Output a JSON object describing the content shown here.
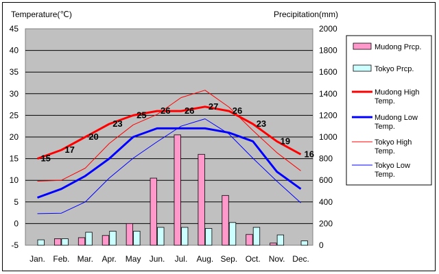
{
  "chart_data": {
    "type": "bar+line",
    "left_axis_label": "Temperature(℃)",
    "right_axis_label": "Precipitation(mm)",
    "left_ylim": [
      -5,
      45
    ],
    "left_ticks": [
      45,
      40,
      35,
      30,
      25,
      20,
      15,
      10,
      5,
      0,
      -5
    ],
    "right_ylim": [
      0,
      2000
    ],
    "right_ticks": [
      2000,
      1800,
      1600,
      1400,
      1200,
      1000,
      800,
      600,
      400,
      200,
      0
    ],
    "categories": [
      "Jan.",
      "Feb.",
      "Mar.",
      "Apr.",
      "May",
      "Jun.",
      "Jul.",
      "Aug.",
      "Sep.",
      "Oct.",
      "Nov.",
      "Dec."
    ],
    "bars": [
      {
        "name": "Mudong Prcp.",
        "color": "#ff99cc",
        "values": [
          0,
          60,
          70,
          90,
          200,
          620,
          1020,
          840,
          460,
          100,
          20,
          0
        ]
      },
      {
        "name": "Tokyo Prcp.",
        "color": "#ccffff",
        "values": [
          50,
          60,
          120,
          130,
          130,
          165,
          165,
          155,
          210,
          165,
          95,
          40
        ]
      }
    ],
    "lines": [
      {
        "name": "Mudong High Temp.",
        "color": "#ff0000",
        "width": 3,
        "values": [
          15,
          17,
          20,
          23,
          25,
          26,
          26,
          27,
          26,
          23,
          19,
          16
        ],
        "labeled": true
      },
      {
        "name": "Mudong Low Temp.",
        "color": "#0000ff",
        "width": 3,
        "values": [
          6,
          8,
          11,
          15,
          20,
          22,
          22,
          22,
          21,
          19,
          12,
          8
        ],
        "labeled": false
      },
      {
        "name": "Tokyo High Temp.",
        "color": "#ff0000",
        "width": 1,
        "values": [
          9.8,
          10,
          12.8,
          18.5,
          22.8,
          25.2,
          29.1,
          30.8,
          26.9,
          21.5,
          16.4,
          12.2
        ],
        "labeled": false
      },
      {
        "name": "Tokyo Low Temp.",
        "color": "#0000ff",
        "width": 1,
        "values": [
          2.3,
          2.4,
          5,
          10.5,
          15.1,
          18.9,
          22.5,
          24.2,
          20.7,
          15.1,
          9.8,
          4.8
        ],
        "labeled": false
      }
    ],
    "data_labels": [
      "15",
      "17",
      "20",
      "23",
      "25",
      "26",
      "26",
      "27",
      "26",
      "23",
      "19",
      "16"
    ],
    "plot_background": "#c0c0c0",
    "grid": "horizontal",
    "legend_position": "right"
  }
}
